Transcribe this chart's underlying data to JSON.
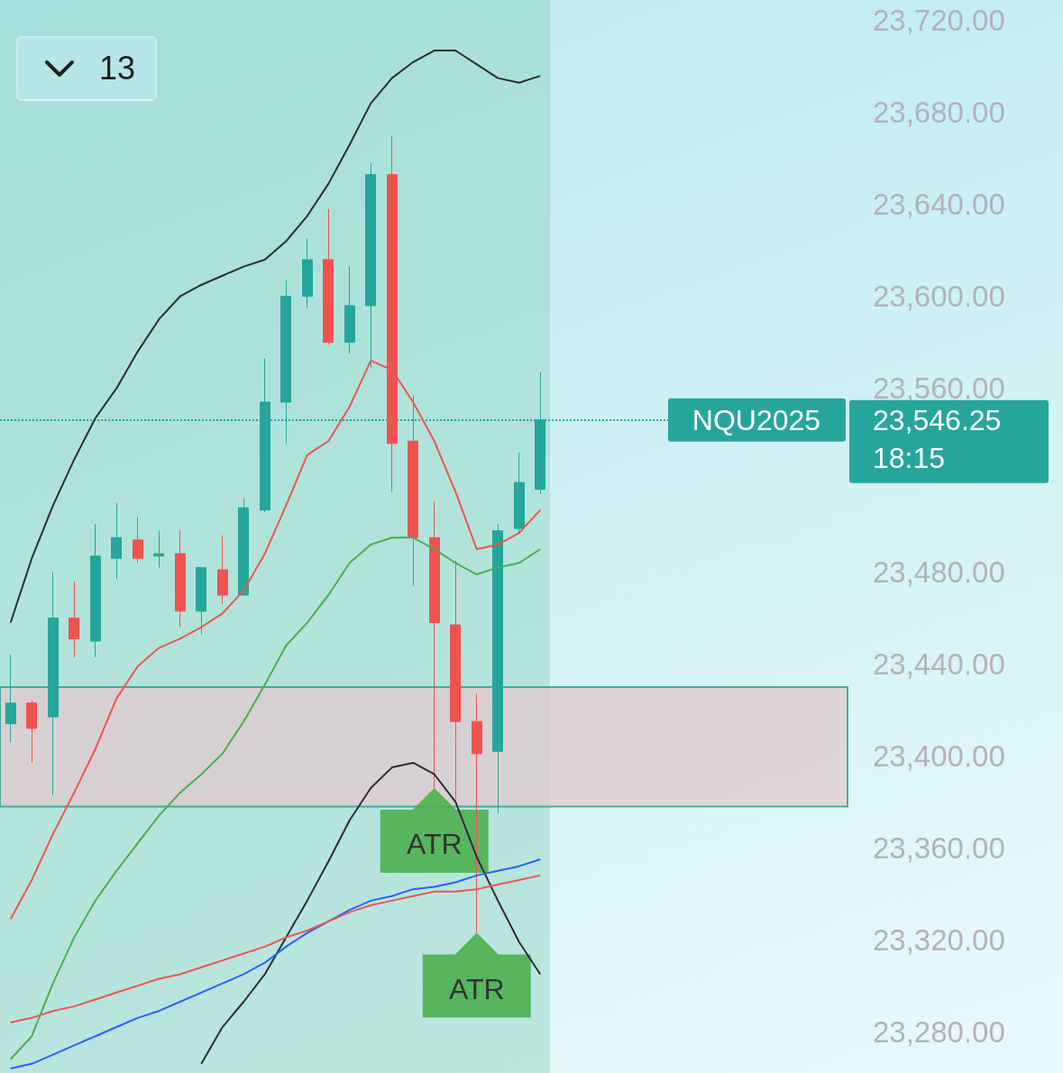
{
  "chart_data": {
    "type": "candlestick",
    "categories": [
      null,
      null,
      null,
      null,
      null,
      null,
      null,
      null,
      null,
      null,
      null,
      null,
      null,
      null,
      null,
      null,
      null,
      null,
      null,
      null,
      null,
      null,
      null,
      null,
      null,
      null,
      null,
      null,
      null,
      null,
      null,
      null,
      null,
      null,
      null,
      null,
      null,
      null,
      null,
      null
    ],
    "ohlc": [
      [
        23414,
        23444,
        23406,
        23423
      ],
      [
        23423,
        23424,
        23397,
        23412
      ],
      [
        23417,
        23480,
        23383,
        23460
      ],
      [
        23460,
        23476,
        23443,
        23451
      ],
      [
        23450,
        23501,
        23443,
        23487
      ],
      [
        23486,
        23510,
        23477,
        23495
      ],
      [
        23494,
        23504,
        23484,
        23486
      ],
      [
        23487,
        23498,
        23482,
        23488
      ],
      [
        23488,
        23498,
        23456,
        23463
      ],
      [
        23463,
        23482,
        23453,
        23482
      ],
      [
        23481,
        23496,
        23466,
        23470
      ],
      [
        23470,
        23512,
        23470,
        23508
      ],
      [
        23507,
        23573,
        23506,
        23554
      ],
      [
        23554,
        23607,
        23536,
        23600
      ],
      [
        23600,
        23625,
        23595,
        23616
      ],
      [
        23616,
        23638,
        23579,
        23580
      ],
      [
        23580,
        23613,
        23575,
        23596
      ],
      [
        23596,
        23658,
        23569,
        23653
      ],
      [
        23653,
        23670,
        23515,
        23536
      ],
      [
        23537,
        23557,
        23474,
        23495
      ],
      [
        23495,
        23511,
        23386,
        23458
      ],
      [
        23457,
        23485,
        23380,
        23415
      ],
      [
        23415,
        23427,
        23323,
        23401
      ],
      [
        23402,
        23501,
        23375,
        23498
      ],
      [
        23499,
        23532,
        23497,
        23519
      ],
      [
        23516,
        23567,
        23514,
        23546.25
      ],
      null,
      null,
      null,
      null,
      null,
      null,
      null,
      null,
      null,
      null,
      null,
      null,
      null,
      null
    ],
    "colors": [
      "#26a69a",
      "#ef5350",
      "#26a69a",
      "#ef5350",
      "#26a69a",
      "#26a69a",
      "#ef5350",
      "#26a69a",
      "#ef5350",
      "#26a69a",
      "#ef5350",
      "#26a69a",
      "#26a69a",
      "#26a69a",
      "#26a69a",
      "#ef5350",
      "#26a69a",
      "#26a69a",
      "#ef5350",
      "#ef5350",
      "#ef5350",
      "#ef5350",
      "#ef5350",
      "#26a69a",
      "#26a69a",
      "#26a69a",
      null,
      null,
      null,
      null,
      null,
      null,
      null,
      null,
      null,
      null,
      null,
      null,
      null,
      null
    ],
    "series": [
      {
        "type": "line",
        "color": "#2a2e39",
        "values": [
          23458,
          23486,
          23509,
          23529,
          23547,
          23560,
          23576,
          23590,
          23600,
          23605,
          23609,
          23613,
          23616,
          23624,
          23635,
          23649,
          23666,
          23684,
          23695,
          23702,
          23707,
          23707,
          23701,
          23695,
          23693,
          23696,
          null,
          null,
          null,
          null,
          null,
          null,
          null,
          null,
          null,
          null,
          null,
          null,
          null,
          null
        ]
      },
      {
        "type": "line",
        "color": "#2a2e39",
        "values": [
          null,
          null,
          null,
          null,
          null,
          null,
          null,
          null,
          null,
          23266,
          23282,
          23293,
          23305,
          23321,
          23337,
          23354,
          23372,
          23386,
          23395,
          23397,
          23392,
          23380,
          23356,
          23337,
          23319,
          23305,
          null,
          null,
          null,
          null,
          null,
          null,
          null,
          null,
          null,
          null,
          null,
          null,
          null,
          null
        ]
      },
      {
        "type": "line",
        "color": "#f05454",
        "values": [
          23329,
          23346,
          23366,
          23384,
          23403,
          23425,
          23439,
          23447,
          23451,
          23456,
          23462,
          23472,
          23488,
          23509,
          23531,
          23537,
          23552,
          23572,
          23568,
          23554,
          23537,
          23515,
          23490,
          23492,
          23497,
          23507,
          null,
          null,
          null,
          null,
          null,
          null,
          null,
          null,
          null,
          null,
          null,
          null,
          null,
          null
        ]
      },
      {
        "type": "line",
        "color": "#4caf50",
        "values": [
          23268,
          23278,
          23301,
          23321,
          23337,
          23350,
          23362,
          23374,
          23384,
          23392,
          23401,
          23415,
          23431,
          23448,
          23458,
          23470,
          23484,
          23492,
          23495,
          23495,
          23490,
          23484,
          23479,
          23482,
          23484,
          23490,
          null,
          null,
          null,
          null,
          null,
          null,
          null,
          null,
          null,
          null,
          null,
          null,
          null,
          null
        ]
      },
      {
        "type": "line",
        "color": "#2962ff",
        "values": [
          23264,
          23266,
          23270,
          23274,
          23278,
          23282,
          23286,
          23289,
          23293,
          23297,
          23301,
          23305,
          23310,
          23317,
          23323,
          23328,
          23333,
          23337,
          23339,
          23342,
          23343,
          23345,
          23348,
          23350,
          23352,
          23355,
          null,
          null,
          null,
          null,
          null,
          null,
          null,
          null,
          null,
          null,
          null,
          null,
          null,
          null
        ]
      },
      {
        "type": "line",
        "color": "#f05454",
        "values": [
          23284,
          23286,
          23289,
          23291,
          23294,
          23297,
          23300,
          23303,
          23305,
          23308,
          23311,
          23314,
          23317,
          23321,
          23324,
          23328,
          23332,
          23335,
          23337,
          23339,
          23341,
          23341,
          23342,
          23344,
          23346,
          23348,
          null,
          null,
          null,
          null,
          null,
          null,
          null,
          null,
          null,
          null,
          null,
          null,
          null,
          null
        ]
      }
    ],
    "ylim": [
      23262,
      23729
    ],
    "yticks": [
      {
        "value": 23280,
        "label": "23,280.00"
      },
      {
        "value": 23320,
        "label": "23,320.00"
      },
      {
        "value": 23360,
        "label": "23,360.00"
      },
      {
        "value": 23400,
        "label": "23,400.00"
      },
      {
        "value": 23440,
        "label": "23,440.00"
      },
      {
        "value": 23480,
        "label": "23,480.00"
      },
      {
        "value": 23560,
        "label": "23,560.00"
      },
      {
        "value": 23600,
        "label": "23,600.00"
      },
      {
        "value": 23640,
        "label": "23,640.00"
      },
      {
        "value": 23680,
        "label": "23,680.00"
      },
      {
        "value": 23720,
        "label": "23,720.00"
      }
    ],
    "tick_labels": "y",
    "grid": false,
    "line_style": "solid",
    "marker": "none",
    "bands": [
      {
        "axis": "y",
        "from": 23378,
        "to": 23430,
        "color": "#e3c9cf"
      }
    ],
    "ref_lines": [
      {
        "axis": "y",
        "value": 23546.25,
        "label": "NQU2025",
        "color": "#26a69a",
        "line_style": "dotted"
      }
    ],
    "annotations": [
      {
        "text": "ATR",
        "y": 23386
      },
      {
        "text": "ATR",
        "y": 23323
      },
      "23,546.25",
      "18:15",
      "13"
    ]
  }
}
